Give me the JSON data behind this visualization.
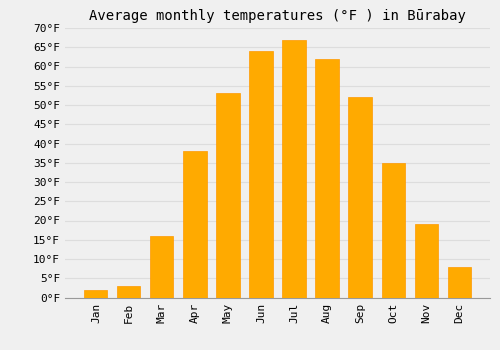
{
  "title": "Average monthly temperatures (°F ) in Būrabay",
  "months": [
    "Jan",
    "Feb",
    "Mar",
    "Apr",
    "May",
    "Jun",
    "Jul",
    "Aug",
    "Sep",
    "Oct",
    "Nov",
    "Dec"
  ],
  "values": [
    2,
    3,
    16,
    38,
    53,
    64,
    67,
    62,
    52,
    35,
    19,
    8
  ],
  "bar_color": "#FFAA00",
  "bar_edge_color": "#FF9900",
  "background_color": "#F0F0F0",
  "grid_color": "#DDDDDD",
  "ylim": [
    0,
    70
  ],
  "yticks": [
    0,
    5,
    10,
    15,
    20,
    25,
    30,
    35,
    40,
    45,
    50,
    55,
    60,
    65,
    70
  ],
  "title_fontsize": 10,
  "tick_fontsize": 8,
  "ylabel_suffix": "°F"
}
